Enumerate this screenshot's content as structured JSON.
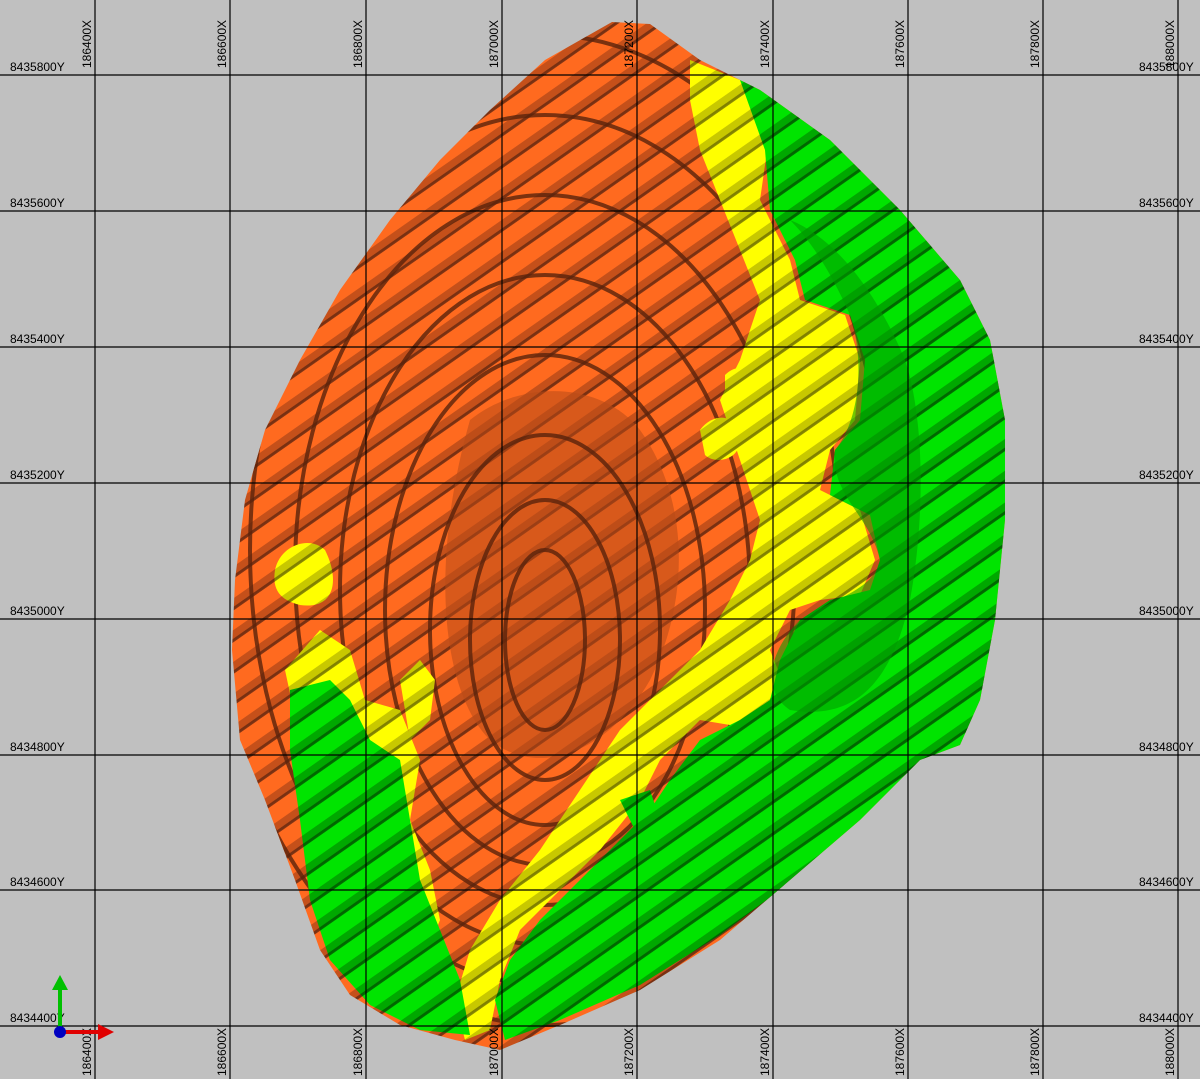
{
  "view": {
    "background_color": "#c0c0c0",
    "grid_color": "#000000"
  },
  "grid": {
    "x_labels": [
      "186400X",
      "186600X",
      "186800X",
      "187000X",
      "187200X",
      "187400X",
      "187600X",
      "187800X",
      "188000X"
    ],
    "y_labels": [
      "8435800Y",
      "8435600Y",
      "8435400Y",
      "8435200Y",
      "8435000Y",
      "8434800Y",
      "8434600Y",
      "8434400Y"
    ],
    "right_y_labels": [
      "8435800Y",
      "8435600Y",
      "8435400Y",
      "8435200Y",
      "8435000Y",
      "8434800Y",
      "8434600Y",
      "8434400Y"
    ],
    "bottom_x_labels": [
      "186400X",
      "186600X",
      "186800X",
      "187000X",
      "187200X",
      "187400X",
      "187600X",
      "187800X",
      "188000X"
    ]
  },
  "legend_colors": {
    "orange_zone": "#ff6a1f",
    "yellow_zone": "#ffff00",
    "green_zone": "#00e400",
    "bench_shadow": "#6b2a10"
  },
  "axis_triad": {
    "x_axis_color": "#e00000",
    "y_axis_color": "#00c000",
    "z_axis_color": "#0000c0"
  }
}
